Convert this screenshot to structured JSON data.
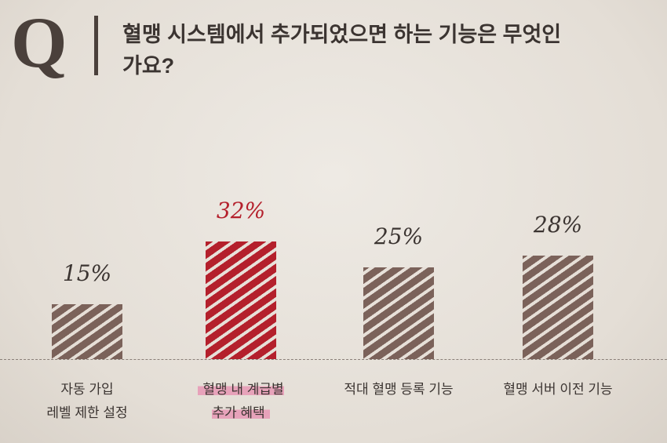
{
  "chart_data": {
    "type": "bar",
    "marker": "Q",
    "title": "혈맹 시스템에서 추가되었으면 하는 기능은 무엇인가요?",
    "categories": [
      "자동 가입\n레벨 제한 설정",
      "혈맹 내 계급별\n추가 혜택",
      "적대 혈맹 등록 기능",
      "혈맹 서버 이전 기능"
    ],
    "values": [
      15,
      32,
      25,
      28
    ],
    "value_labels": [
      "15%",
      "32%",
      "25%",
      "28%"
    ],
    "colors": [
      "#7b625a",
      "#b4202c",
      "#7b625a",
      "#7b625a"
    ],
    "highlight": 1
  }
}
